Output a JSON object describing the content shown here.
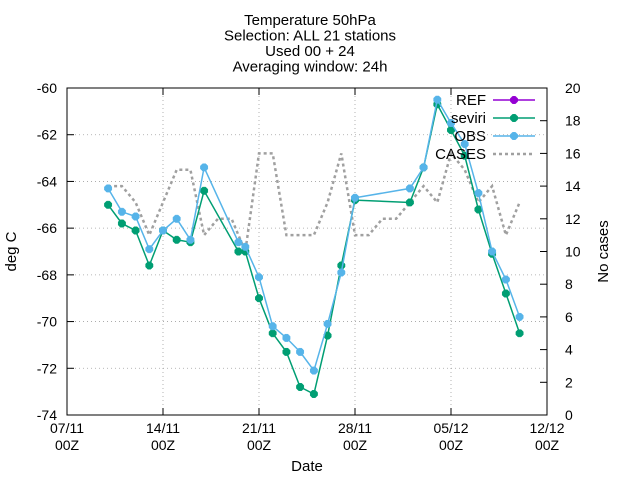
{
  "chart_data": {
    "type": "line",
    "title_lines": [
      "Temperature 50hPa",
      "Selection: ALL      21 stations",
      "Used 00 + 24",
      "Averaging window: 24h"
    ],
    "xlabel": "Date",
    "ylabel": "deg C",
    "y2label": "No cases",
    "xlim": [
      "2019-11-07T00",
      "2019-12-12T00"
    ],
    "ylim": [
      -74,
      -60
    ],
    "y2lim": [
      0,
      20
    ],
    "x_ticks": [
      {
        "t": "2019-11-07T00",
        "label": [
          "07/11",
          "00Z"
        ]
      },
      {
        "t": "2019-11-14T00",
        "label": [
          "14/11",
          "00Z"
        ]
      },
      {
        "t": "2019-11-21T00",
        "label": [
          "21/11",
          "00Z"
        ]
      },
      {
        "t": "2019-11-28T00",
        "label": [
          "28/11",
          "00Z"
        ]
      },
      {
        "t": "2019-12-05T00",
        "label": [
          "05/12",
          "00Z"
        ]
      },
      {
        "t": "2019-12-12T00",
        "label": [
          "12/12",
          "00Z"
        ]
      }
    ],
    "y_ticks": [
      -74,
      -72,
      -70,
      -68,
      -66,
      -64,
      -62,
      -60
    ],
    "y2_ticks": [
      0,
      2,
      4,
      6,
      8,
      10,
      12,
      14,
      16,
      18,
      20
    ],
    "grid": true,
    "legend_position": "top-right",
    "series": [
      {
        "name": "REF",
        "axis": "y",
        "color": "#9400d3",
        "style": "line-points",
        "points": []
      },
      {
        "name": "seviri",
        "axis": "y",
        "color": "#009e73",
        "style": "line-points",
        "points": [
          [
            "2019-11-10T00",
            -65.0
          ],
          [
            "2019-11-11T00",
            -65.8
          ],
          [
            "2019-11-12T00",
            -66.1
          ],
          [
            "2019-11-13T00",
            -67.6
          ],
          [
            "2019-11-14T00",
            -66.1
          ],
          [
            "2019-11-15T00",
            -66.5
          ],
          [
            "2019-11-16T00",
            -66.6
          ],
          [
            "2019-11-17T00",
            -64.4
          ],
          [
            "2019-11-19T12",
            -67.0
          ],
          [
            "2019-11-20T00",
            -67.0
          ],
          [
            "2019-11-21T00",
            -69.0
          ],
          [
            "2019-11-22T00",
            -70.5
          ],
          [
            "2019-11-23T00",
            -71.3
          ],
          [
            "2019-11-24T00",
            -72.8
          ],
          [
            "2019-11-25T00",
            -73.1
          ],
          [
            "2019-11-26T00",
            -70.6
          ],
          [
            "2019-11-27T00",
            -67.6
          ],
          [
            "2019-11-28T00",
            -64.8
          ],
          [
            "2019-12-02T00",
            -64.9
          ],
          [
            "2019-12-03T00",
            -63.4
          ],
          [
            "2019-12-04T00",
            -60.7
          ],
          [
            "2019-12-05T00",
            -61.8
          ],
          [
            "2019-12-06T00",
            -62.9
          ],
          [
            "2019-12-07T00",
            -65.2
          ],
          [
            "2019-12-08T00",
            -67.1
          ],
          [
            "2019-12-09T00",
            -68.8
          ],
          [
            "2019-12-10T00",
            -70.5
          ]
        ]
      },
      {
        "name": "OBS",
        "axis": "y",
        "color": "#56b4e9",
        "style": "line-points",
        "points": [
          [
            "2019-11-10T00",
            -64.3
          ],
          [
            "2019-11-11T00",
            -65.3
          ],
          [
            "2019-11-12T00",
            -65.5
          ],
          [
            "2019-11-13T00",
            -66.9
          ],
          [
            "2019-11-14T00",
            -66.1
          ],
          [
            "2019-11-15T00",
            -65.6
          ],
          [
            "2019-11-16T00",
            -66.5
          ],
          [
            "2019-11-17T00",
            -63.4
          ],
          [
            "2019-11-19T12",
            -66.6
          ],
          [
            "2019-11-20T00",
            -66.8
          ],
          [
            "2019-11-21T00",
            -68.1
          ],
          [
            "2019-11-22T00",
            -70.2
          ],
          [
            "2019-11-23T00",
            -70.7
          ],
          [
            "2019-11-24T00",
            -71.3
          ],
          [
            "2019-11-25T00",
            -72.1
          ],
          [
            "2019-11-26T00",
            -70.1
          ],
          [
            "2019-11-27T00",
            -67.9
          ],
          [
            "2019-11-28T00",
            -64.7
          ],
          [
            "2019-12-02T00",
            -64.3
          ],
          [
            "2019-12-03T00",
            -63.4
          ],
          [
            "2019-12-04T00",
            -60.5
          ],
          [
            "2019-12-05T00",
            -61.5
          ],
          [
            "2019-12-06T00",
            -62.4
          ],
          [
            "2019-12-07T00",
            -64.5
          ],
          [
            "2019-12-08T00",
            -67.0
          ],
          [
            "2019-12-09T00",
            -68.2
          ],
          [
            "2019-12-10T00",
            -69.8
          ]
        ]
      },
      {
        "name": "CASES",
        "axis": "y2",
        "color": "#a0a0a0",
        "style": "dotted",
        "points": [
          [
            "2019-11-10T00",
            14
          ],
          [
            "2019-11-11T00",
            14
          ],
          [
            "2019-11-12T00",
            13
          ],
          [
            "2019-11-13T00",
            11
          ],
          [
            "2019-11-14T00",
            13
          ],
          [
            "2019-11-15T00",
            15
          ],
          [
            "2019-11-16T00",
            15
          ],
          [
            "2019-11-17T00",
            11
          ],
          [
            "2019-11-18T00",
            12
          ],
          [
            "2019-11-19T00",
            12
          ],
          [
            "2019-11-20T00",
            10
          ],
          [
            "2019-11-21T00",
            16
          ],
          [
            "2019-11-22T00",
            16
          ],
          [
            "2019-11-23T00",
            11
          ],
          [
            "2019-11-24T00",
            11
          ],
          [
            "2019-11-25T00",
            11
          ],
          [
            "2019-11-26T00",
            13
          ],
          [
            "2019-11-27T00",
            16
          ],
          [
            "2019-11-28T00",
            11
          ],
          [
            "2019-11-29T00",
            11
          ],
          [
            "2019-11-30T00",
            12
          ],
          [
            "2019-12-01T00",
            12
          ],
          [
            "2019-12-02T00",
            13
          ],
          [
            "2019-12-03T00",
            14
          ],
          [
            "2019-12-04T00",
            13
          ],
          [
            "2019-12-05T00",
            16
          ],
          [
            "2019-12-06T00",
            15
          ],
          [
            "2019-12-07T00",
            13
          ],
          [
            "2019-12-08T00",
            14
          ],
          [
            "2019-12-09T00",
            11
          ],
          [
            "2019-12-10T00",
            13
          ]
        ]
      }
    ]
  }
}
